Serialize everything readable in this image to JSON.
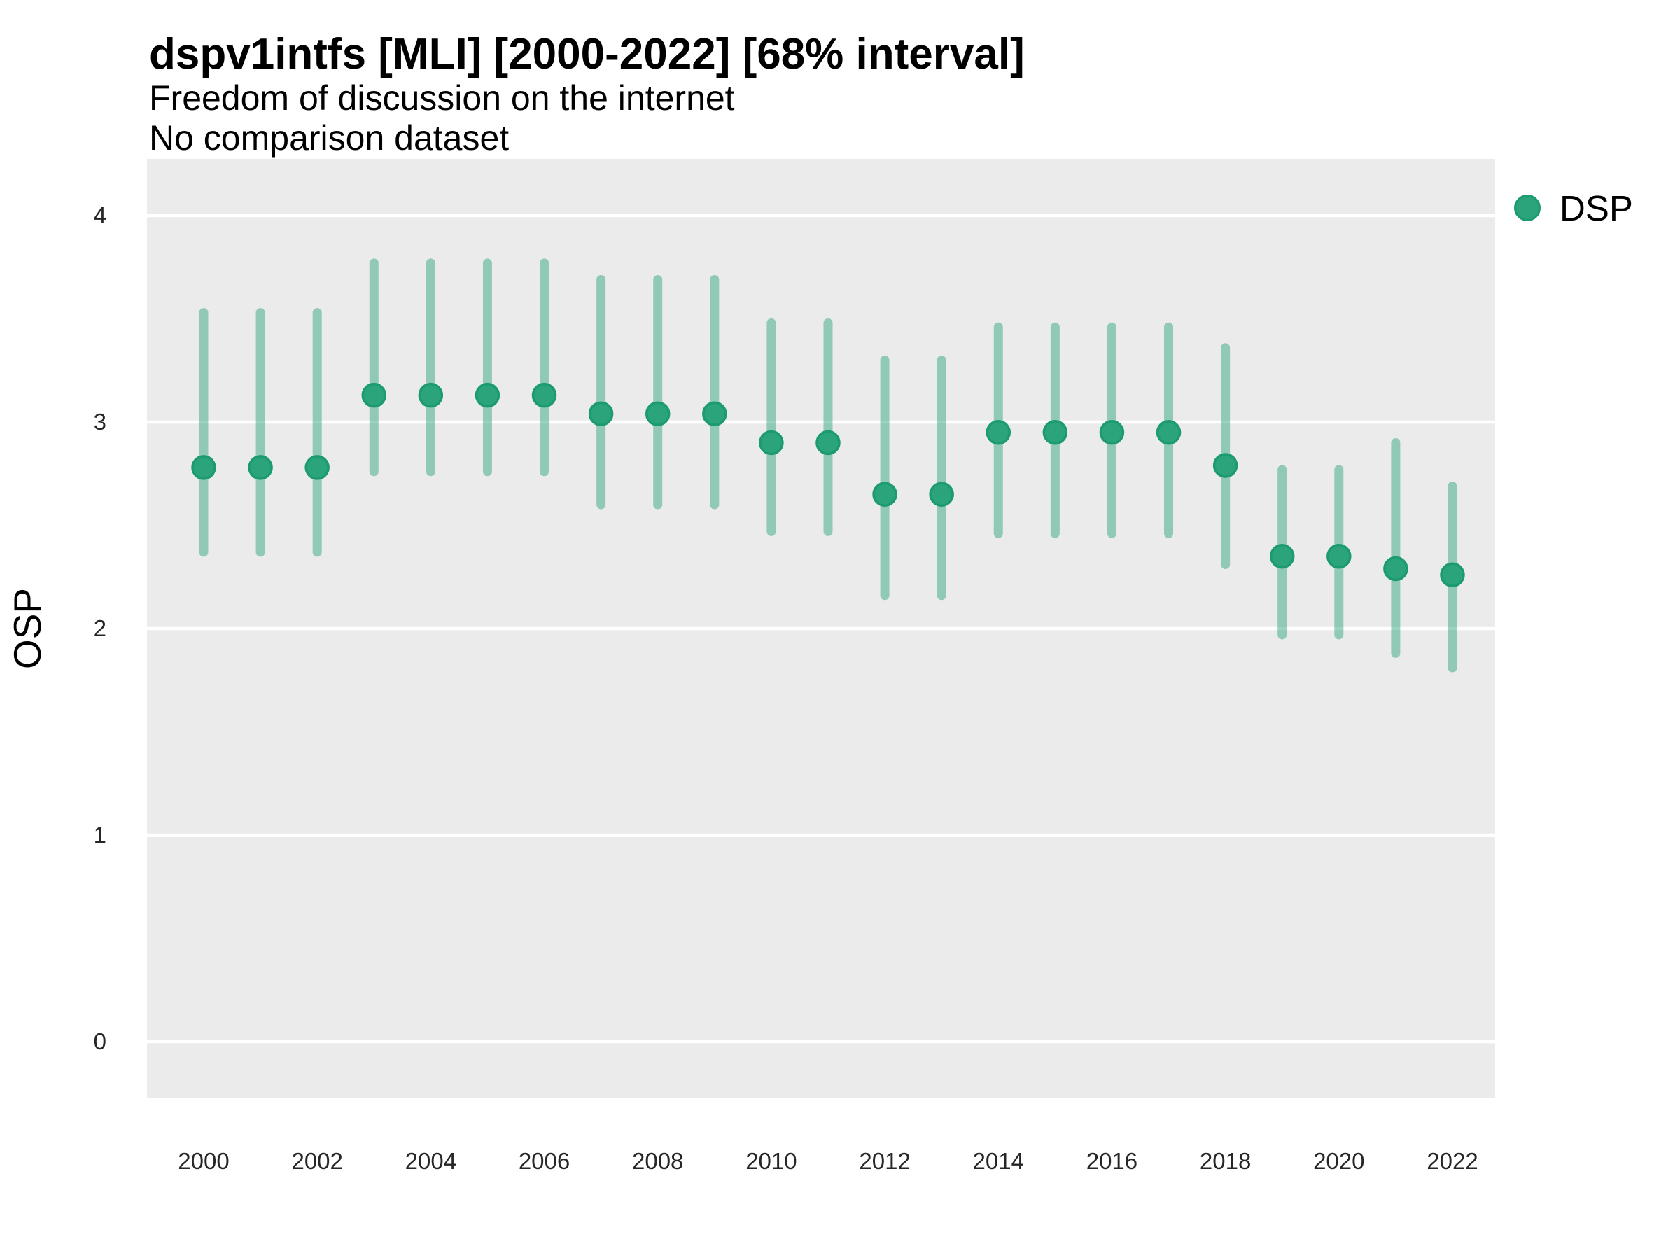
{
  "header": {
    "title": "dspv1intfs [MLI] [2000-2022] [68% interval]",
    "subtitle_line1": "Freedom of discussion on the internet",
    "subtitle_line2": "No comparison dataset"
  },
  "axes": {
    "y_label": "OSP"
  },
  "legend": {
    "label": "DSP"
  },
  "chart_data": {
    "type": "pointrange",
    "title": "dspv1intfs [MLI] [2000-2022] [68% interval]",
    "subtitle": [
      "Freedom of discussion on the internet",
      "No comparison dataset"
    ],
    "xlabel": "",
    "ylabel": "OSP",
    "ylim": [
      0,
      4
    ],
    "y_ticks": [
      0,
      1,
      2,
      3,
      4
    ],
    "x_tick_years": [
      2000,
      2002,
      2004,
      2006,
      2008,
      2010,
      2012,
      2014,
      2016,
      2018,
      2020,
      2022
    ],
    "x": [
      2000,
      2001,
      2002,
      2003,
      2004,
      2005,
      2006,
      2007,
      2008,
      2009,
      2010,
      2011,
      2012,
      2013,
      2014,
      2015,
      2016,
      2017,
      2018,
      2019,
      2020,
      2021,
      2022
    ],
    "series": [
      {
        "name": "DSP",
        "estimate": [
          2.78,
          2.78,
          2.78,
          3.13,
          3.13,
          3.13,
          3.13,
          3.04,
          3.04,
          3.04,
          2.9,
          2.9,
          2.65,
          2.65,
          2.95,
          2.95,
          2.95,
          2.95,
          2.79,
          2.35,
          2.35,
          2.29,
          2.26
        ],
        "lower_68": [
          2.37,
          2.37,
          2.37,
          2.76,
          2.76,
          2.76,
          2.76,
          2.6,
          2.6,
          2.6,
          2.47,
          2.47,
          2.16,
          2.16,
          2.46,
          2.46,
          2.46,
          2.46,
          2.31,
          1.97,
          1.97,
          1.88,
          1.81
        ],
        "upper_68": [
          3.53,
          3.53,
          3.53,
          3.77,
          3.77,
          3.77,
          3.77,
          3.69,
          3.69,
          3.69,
          3.48,
          3.48,
          3.3,
          3.3,
          3.46,
          3.46,
          3.46,
          3.46,
          3.36,
          2.77,
          2.77,
          2.9,
          2.69
        ]
      }
    ],
    "legend_position": "right-top",
    "grid": "major-horizontal-only",
    "panel_background": "#EBEBEB",
    "gridline_color": "#FFFFFF",
    "point_color": "#2BA47B",
    "point_stroke_color": "#1B9B6F",
    "interval_color": "#2BA47B",
    "interval_opacity": 0.48
  }
}
